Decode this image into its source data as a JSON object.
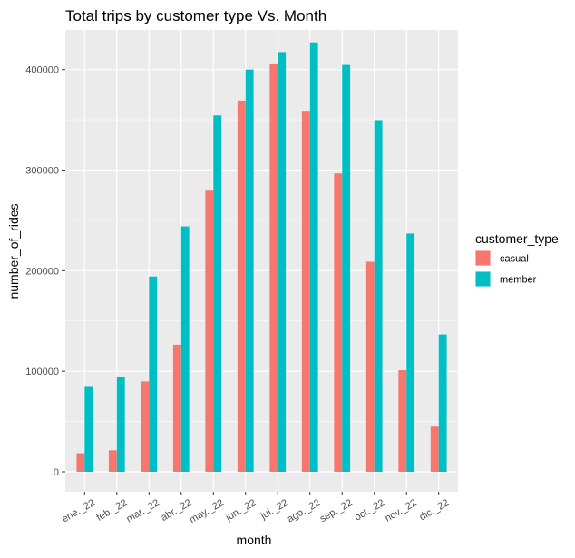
{
  "chart_data": {
    "type": "bar",
    "title": "Total trips by customer type Vs. Month",
    "xlabel": "month",
    "ylabel": "number_of_rides",
    "categories": [
      "ene._22",
      "feb._22",
      "mar._22",
      "abr._22",
      "may._22",
      "jun._22",
      "jul._22",
      "ago._22",
      "sep._22",
      "oct._22",
      "nov._22",
      "dic._22"
    ],
    "series": [
      {
        "name": "casual",
        "color": "#F8766D",
        "values": [
          18500,
          21400,
          89900,
          126400,
          280400,
          369100,
          406100,
          358900,
          296700,
          208900,
          101000,
          44900
        ]
      },
      {
        "name": "member",
        "color": "#00BFC4",
        "values": [
          85300,
          94200,
          194200,
          244000,
          354400,
          400000,
          417400,
          427000,
          404600,
          349700,
          236900,
          136600
        ]
      }
    ],
    "ylim": [
      0,
      453000
    ],
    "yticks": [
      0,
      100000,
      200000,
      300000,
      400000
    ],
    "ytick_labels": [
      "0",
      "100000",
      "200000",
      "300000",
      "400000"
    ],
    "grid": true,
    "legend": {
      "title": "customer_type",
      "position": "right"
    },
    "panel_background": "#EBEBEB",
    "grid_color": "#FFFFFF"
  }
}
